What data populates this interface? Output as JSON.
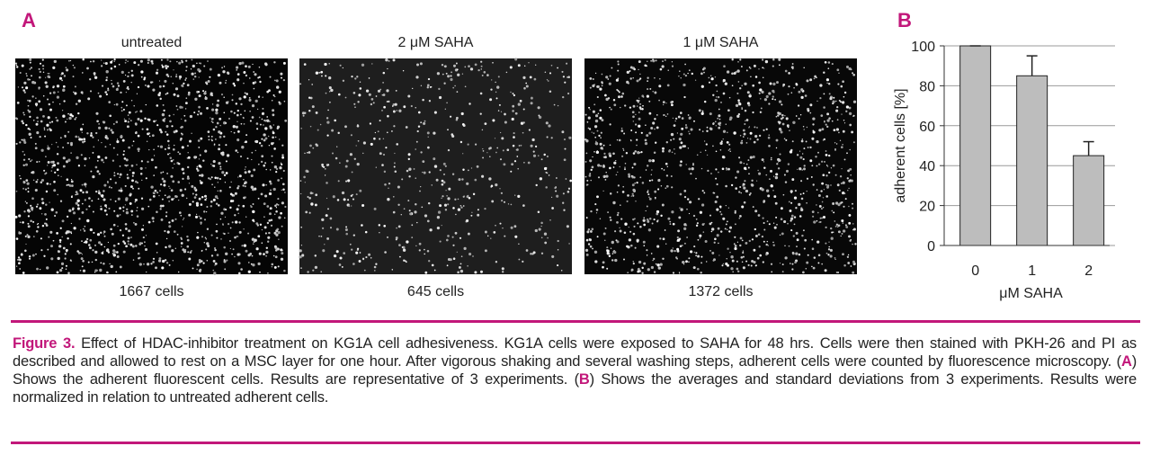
{
  "panel_a": {
    "label": "A",
    "images": [
      {
        "title": "untreated",
        "count": "1667 cells"
      },
      {
        "title": "2 μM SAHA",
        "count": "645 cells"
      },
      {
        "title": "1 μM SAHA",
        "count": "1372 cells"
      }
    ]
  },
  "chart_data": {
    "type": "bar",
    "panel_label": "B",
    "categories": [
      "0",
      "1",
      "2"
    ],
    "values": [
      100,
      85,
      45
    ],
    "errors": [
      0,
      10,
      7
    ],
    "color": "#bdbdbd",
    "xlabel": "μM SAHA",
    "ylabel": "adherent cells [%]",
    "ylim": [
      0,
      100
    ],
    "yticks": [
      0,
      20,
      40,
      60,
      80,
      100
    ],
    "grid": true
  },
  "caption": {
    "label": "Figure 3.",
    "parts": [
      " Effect of HDAC-inhibitor treatment on KG1A cell adhesiveness. KG1A cells were exposed to SAHA for 48 hrs. Cells were then stained with PKH-26 and PI as described and allowed to rest on a MSC layer for one hour. After vigorous shaking and several washing steps, adherent cells were counted by fluorescence microscopy. (",
      "A",
      ") Shows the adherent fluorescent cells. Results are representative of 3 experiments. (",
      "B",
      ") Shows the averages and standard deviations from 3 experiments. Results were normalized in relation to untreated adherent cells."
    ]
  }
}
